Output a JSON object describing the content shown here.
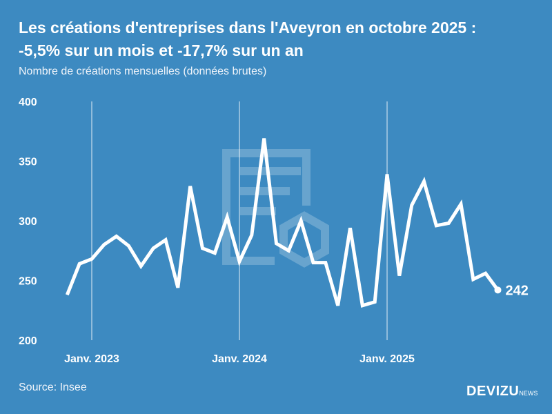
{
  "header": {
    "title_line1": "Les créations d'entreprises dans l'Aveyron en octobre 2025 :",
    "title_line2": "-5,5% sur un mois et -17,7% sur un an",
    "subtitle": "Nombre de créations mensuelles (données brutes)"
  },
  "footer": {
    "source": "Source: Insee",
    "brand": "DEVIZU",
    "brand_suffix": "NEWS"
  },
  "colors": {
    "background": "#3d8ac1",
    "line": "#ffffff"
  },
  "chart_data": {
    "type": "line",
    "title": "",
    "xlabel": "",
    "ylabel": "",
    "ylim": [
      200,
      400
    ],
    "yticks": [
      200,
      250,
      300,
      350,
      400
    ],
    "xtick_labels": [
      {
        "label": "Janv. 2023",
        "month": "2023-01"
      },
      {
        "label": "Janv. 2024",
        "month": "2024-01"
      },
      {
        "label": "Janv. 2025",
        "month": "2025-01"
      }
    ],
    "grid": "vertical lines at January",
    "x_start": "2022-11",
    "x_end": "2025-10",
    "values": [
      238,
      264,
      268,
      280,
      287,
      279,
      262,
      277,
      284,
      244,
      329,
      277,
      273,
      303,
      266,
      288,
      369,
      281,
      275,
      300,
      265,
      265,
      229,
      294,
      229,
      232,
      339,
      254,
      313,
      333,
      296,
      298,
      314,
      251,
      256,
      242
    ],
    "last_label": "242"
  }
}
